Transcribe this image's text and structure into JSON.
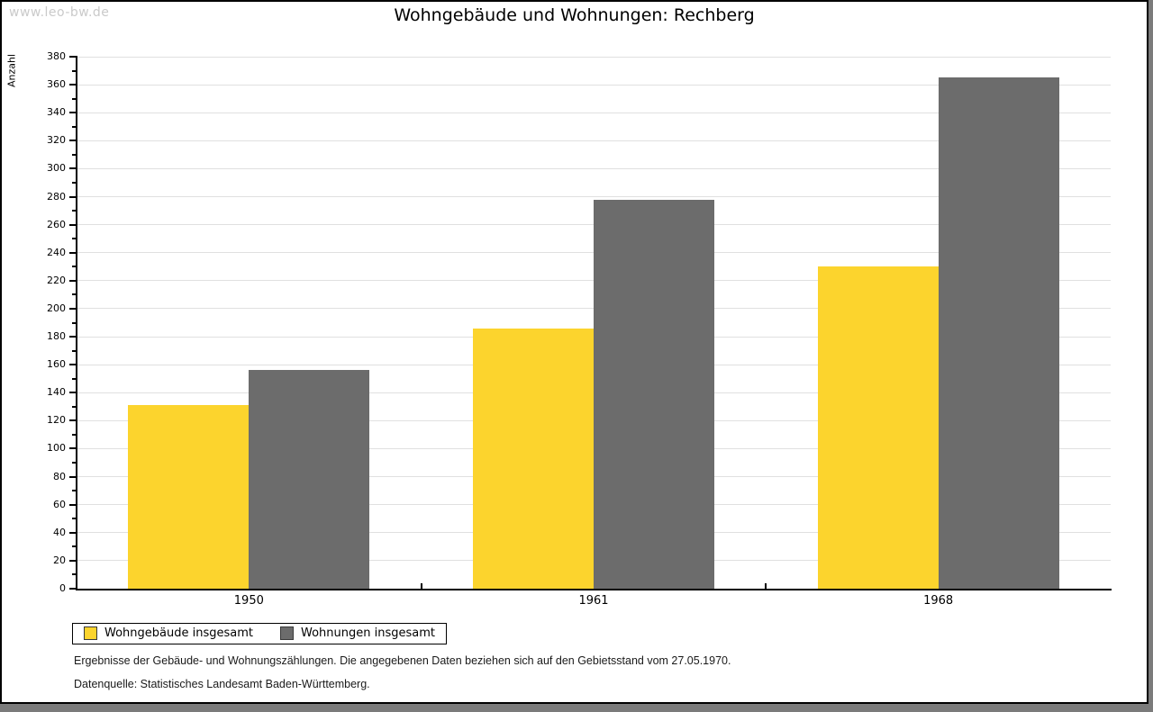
{
  "watermark": "www.leo-bw.de",
  "title": "Wohngebäude und Wohnungen: Rechberg",
  "chart_data": {
    "type": "bar",
    "title": "Wohngebäude und Wohnungen: Rechberg",
    "xlabel": "",
    "ylabel": "Anzahl",
    "categories": [
      "1950",
      "1961",
      "1968"
    ],
    "series": [
      {
        "name": "Wohngebäude insgesamt",
        "color": "#FCD42D",
        "values": [
          131,
          186,
          230
        ]
      },
      {
        "name": "Wohnungen insgesamt",
        "color": "#6C6C6C",
        "values": [
          156,
          278,
          365
        ]
      }
    ],
    "ylim": [
      0,
      380
    ],
    "ytick_step": 20,
    "ytick_minor_step": 10,
    "ytick_labels": [
      "0",
      "20",
      "40",
      "60",
      "80",
      "100",
      "120",
      "140",
      "160",
      "180",
      "200",
      "220",
      "240",
      "260",
      "280",
      "300",
      "320",
      "340",
      "360",
      "380"
    ],
    "grid": true,
    "legend_position": "bottom-left"
  },
  "footer": {
    "line1": "Ergebnisse der Gebäude- und Wohnungszählungen. Die angegebenen Daten beziehen sich auf den Gebietsstand vom 27.05.1970.",
    "line2": "Datenquelle: Statistisches Landesamt Baden-Württemberg."
  },
  "colors": {
    "background": "#ffffff",
    "frame_shadow": "#7b7b7b",
    "axis": "#000000",
    "gridline": "#e0e0e0",
    "watermark": "#cacaca",
    "bar_yellow": "#FCD42D",
    "bar_gray": "#6C6C6C"
  }
}
